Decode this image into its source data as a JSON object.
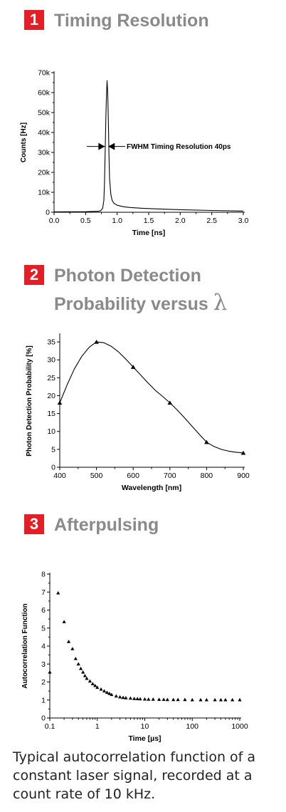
{
  "sections": [
    {
      "number": "1",
      "title": "Timing Resolution"
    },
    {
      "number": "2",
      "title_line1": "Photon Detection",
      "title_line2": "Probability versus",
      "title_symbol": "λ"
    },
    {
      "number": "3",
      "title": "Afterpulsing"
    }
  ],
  "colors": {
    "badge": "#e31e24",
    "title_gray": "#8a8a8a",
    "line": "#000000"
  },
  "chart_data": [
    {
      "type": "line",
      "xlabel": "Time [ns]",
      "ylabel": "Counts [Hz]",
      "xlim": [
        0.0,
        3.0
      ],
      "ylim": [
        0,
        70000
      ],
      "x_ticks": [
        "0.0",
        "0.5",
        "1.0",
        "1.5",
        "2.0",
        "2.5",
        "3.0"
      ],
      "y_ticks": [
        "0",
        "10k",
        "20k",
        "30k",
        "40k",
        "50k",
        "60k",
        "70k"
      ],
      "annotation": "FWHM Timing Resolution 40ps",
      "series": [
        {
          "x": [
            0.0,
            0.5,
            0.7,
            0.74,
            0.77,
            0.79,
            0.8,
            0.81,
            0.82,
            0.83,
            0.84,
            0.85,
            0.86,
            0.87,
            0.88,
            0.9,
            0.92,
            0.95,
            1.0,
            1.1,
            1.2,
            1.4,
            1.6,
            2.0,
            2.5,
            3.0
          ],
          "y": [
            200,
            300,
            500,
            800,
            2000,
            6000,
            15000,
            30000,
            46000,
            58000,
            66000,
            60000,
            46000,
            30000,
            17000,
            9000,
            6000,
            4500,
            3500,
            2800,
            2400,
            2000,
            1700,
            1300,
            900,
            600
          ]
        }
      ]
    },
    {
      "type": "line",
      "xlabel": "Wavelength [nm]",
      "ylabel": "Photon Detection Probability [%]",
      "xlim": [
        400,
        900
      ],
      "ylim": [
        0,
        37
      ],
      "x_ticks": [
        "400",
        "500",
        "600",
        "700",
        "800",
        "900"
      ],
      "y_ticks": [
        "0",
        "5",
        "10",
        "15",
        "20",
        "25",
        "30",
        "35"
      ],
      "series": [
        {
          "markers_x": [
            400,
            500,
            600,
            700,
            800,
            900
          ],
          "markers_y": [
            18,
            35,
            28,
            18,
            7,
            4
          ],
          "x": [
            400,
            420,
            440,
            460,
            480,
            500,
            520,
            540,
            560,
            580,
            600,
            620,
            640,
            660,
            680,
            700,
            720,
            740,
            760,
            780,
            800,
            820,
            840,
            860,
            880,
            900
          ],
          "y": [
            18,
            23,
            27.5,
            31,
            33.5,
            35,
            34.8,
            33.8,
            32.2,
            30.2,
            28,
            25.8,
            23.6,
            21.5,
            19.8,
            18,
            16,
            13.8,
            11.5,
            9.2,
            7,
            5.8,
            5,
            4.5,
            4.2,
            4
          ]
        }
      ]
    },
    {
      "type": "scatter",
      "xlabel": "Time [µs]",
      "ylabel": "Autocorrelation Function",
      "xscale": "log",
      "xlim": [
        0.1,
        1000
      ],
      "ylim": [
        0,
        8
      ],
      "x_ticks": [
        "0.1",
        "1",
        "10",
        "100",
        "1000"
      ],
      "y_ticks": [
        "0",
        "1",
        "2",
        "3",
        "4",
        "5",
        "6",
        "7",
        "8"
      ],
      "series": [
        {
          "x": [
            0.1,
            0.15,
            0.2,
            0.25,
            0.3,
            0.35,
            0.4,
            0.45,
            0.5,
            0.55,
            0.6,
            0.7,
            0.8,
            0.9,
            1.0,
            1.2,
            1.4,
            1.6,
            1.8,
            2.0,
            2.5,
            3,
            3.5,
            4,
            5,
            6,
            7,
            8,
            10,
            12,
            15,
            20,
            25,
            30,
            40,
            50,
            70,
            100,
            150,
            200,
            300,
            400,
            500,
            700,
            1000
          ],
          "y": [
            2.55,
            6.95,
            5.35,
            4.25,
            3.85,
            3.3,
            3.0,
            2.75,
            2.55,
            2.35,
            2.2,
            2.05,
            1.9,
            1.8,
            1.7,
            1.6,
            1.5,
            1.42,
            1.36,
            1.3,
            1.22,
            1.17,
            1.14,
            1.12,
            1.1,
            1.08,
            1.07,
            1.06,
            1.05,
            1.04,
            1.04,
            1.03,
            1.03,
            1.02,
            1.02,
            1.02,
            1.02,
            1.01,
            1.01,
            1.01,
            1.01,
            1.01,
            1.01,
            1.01,
            1.01
          ]
        }
      ]
    }
  ],
  "caption": "Typical autocorrelation function of a constant laser signal, recorded at a count rate of 10 kHz."
}
